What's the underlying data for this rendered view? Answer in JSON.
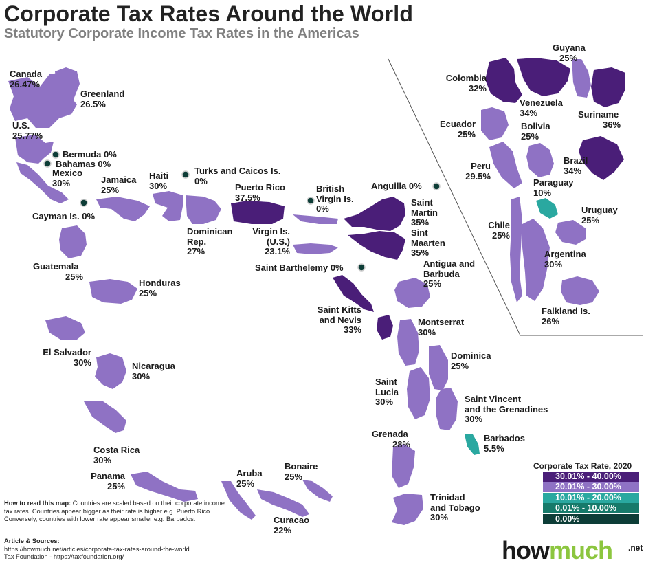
{
  "title": "Corporate Tax Rates Around the World",
  "subtitle": "Statutory Corporate Income Tax Rates in the Americas",
  "colors": {
    "band_30_40": "#4a1e78",
    "band_20_30": "#8f72c4",
    "band_10_20": "#2aa8a0",
    "band_0_10": "#167a6a",
    "band_0": "#0d3d37"
  },
  "labels": {
    "canada": {
      "name": "Canada",
      "rate": "26.47%"
    },
    "greenland": {
      "name": "Greenland",
      "rate": "26.5%"
    },
    "us": {
      "name": "U.S.",
      "rate": "25.77%"
    },
    "bermuda": {
      "text": "Bermuda 0%"
    },
    "bahamas": {
      "text": "Bahamas 0%"
    },
    "mexico": {
      "name": "Mexico",
      "rate": "30%"
    },
    "cayman": {
      "text": "Cayman Is. 0%"
    },
    "jamaica": {
      "name": "Jamaica",
      "rate": "25%"
    },
    "haiti": {
      "name": "Haiti",
      "rate": "30%"
    },
    "turks": {
      "name": "Turks and Caicos Is.",
      "rate": "0%"
    },
    "dominican": {
      "name": "Dominican",
      "name2": "Rep.",
      "rate": "27%"
    },
    "puerto_rico": {
      "name": "Puerto Rico",
      "rate": "37.5%"
    },
    "bvi": {
      "name": "British",
      "name2": "Virgin Is.",
      "rate": "0%"
    },
    "usvi": {
      "name": "Virgin Is.",
      "name2": "(U.S.)",
      "rate": "23.1%"
    },
    "anguilla": {
      "text": "Anguilla 0%"
    },
    "saint_martin": {
      "name": "Saint",
      "name2": "Martin",
      "rate": "35%"
    },
    "sint_maarten": {
      "name": "Sint",
      "name2": "Maarten",
      "rate": "35%"
    },
    "saint_barthelemy": {
      "text": "Saint Barthelemy 0%"
    },
    "antigua": {
      "name": "Antigua and",
      "name2": "Barbuda",
      "rate": "25%"
    },
    "saint_kitts": {
      "name": "Saint Kitts",
      "name2": "and Nevis",
      "rate": "33%"
    },
    "montserrat": {
      "name": "Montserrat",
      "rate": "30%"
    },
    "guatemala": {
      "name": "Guatemala",
      "rate": "25%"
    },
    "honduras": {
      "name": "Honduras",
      "rate": "25%"
    },
    "el_salvador": {
      "name": "El Salvador",
      "rate": "30%"
    },
    "nicaragua": {
      "name": "Nicaragua",
      "rate": "30%"
    },
    "costa_rica": {
      "name": "Costa Rica",
      "rate": "30%"
    },
    "panama": {
      "name": "Panama",
      "rate": "25%"
    },
    "aruba": {
      "name": "Aruba",
      "rate": "25%"
    },
    "bonaire": {
      "name": "Bonaire",
      "rate": "25%"
    },
    "curacao": {
      "name": "Curacao",
      "rate": "22%"
    },
    "dominica": {
      "name": "Dominica",
      "rate": "25%"
    },
    "saint_lucia": {
      "name": "Saint",
      "name2": "Lucia",
      "rate": "30%"
    },
    "saint_vincent": {
      "name": "Saint Vincent",
      "name2": "and the Grenadines",
      "rate": "30%"
    },
    "grenada": {
      "name": "Grenada",
      "rate": "28%"
    },
    "barbados": {
      "name": "Barbados",
      "rate": "5.5%"
    },
    "trinidad": {
      "name": "Trinidad",
      "name2": "and Tobago",
      "rate": "30%"
    },
    "guyana": {
      "name": "Guyana",
      "rate": "25%"
    },
    "colombia": {
      "name": "Colombia",
      "rate": "32%"
    },
    "venezuela": {
      "name": "Venezuela",
      "rate": "34%"
    },
    "suriname": {
      "name": "Suriname",
      "rate": "36%"
    },
    "ecuador": {
      "name": "Ecuador",
      "rate": "25%"
    },
    "bolivia": {
      "name": "Bolivia",
      "rate": "25%"
    },
    "brazil": {
      "name": "Brazil",
      "rate": "34%"
    },
    "peru": {
      "name": "Peru",
      "rate": "29.5%"
    },
    "paraguay": {
      "name": "Paraguay",
      "rate": "10%"
    },
    "uruguay": {
      "name": "Uruguay",
      "rate": "25%"
    },
    "chile": {
      "name": "Chile",
      "rate": "25%"
    },
    "argentina": {
      "name": "Argentina",
      "rate": "30%"
    },
    "falkland": {
      "name": "Falkland Is.",
      "rate": "26%"
    }
  },
  "legend": {
    "title": "Corporate Tax Rate, 2020",
    "items": [
      {
        "label": "30.01% - 40.00%",
        "color": "#4a1e78"
      },
      {
        "label": "20.01% - 30.00%",
        "color": "#8f72c4"
      },
      {
        "label": "10.01% - 20.00%",
        "color": "#2aa8a0"
      },
      {
        "label": "0.01% - 10.00%",
        "color": "#167a6a"
      },
      {
        "label": "0.00%",
        "color": "#0d3d37"
      }
    ]
  },
  "how_to": {
    "heading": "How to read this map:",
    "text": "Countries are scaled based on their corporate income tax rates. Countries appear bigger as their rate is higher e.g. Puerto Rico. Conversely, countries with lower rate appear smaller e.g. Barbados."
  },
  "sources": {
    "heading": "Article & Sources:",
    "line1": "https://howmuch.net/articles/corporate-tax-rates-around-the-world",
    "line2": "Tax Foundation - https://taxfoundation.org/"
  },
  "logo": {
    "part1": "how",
    "part2": "much",
    "suffix": ".net"
  }
}
